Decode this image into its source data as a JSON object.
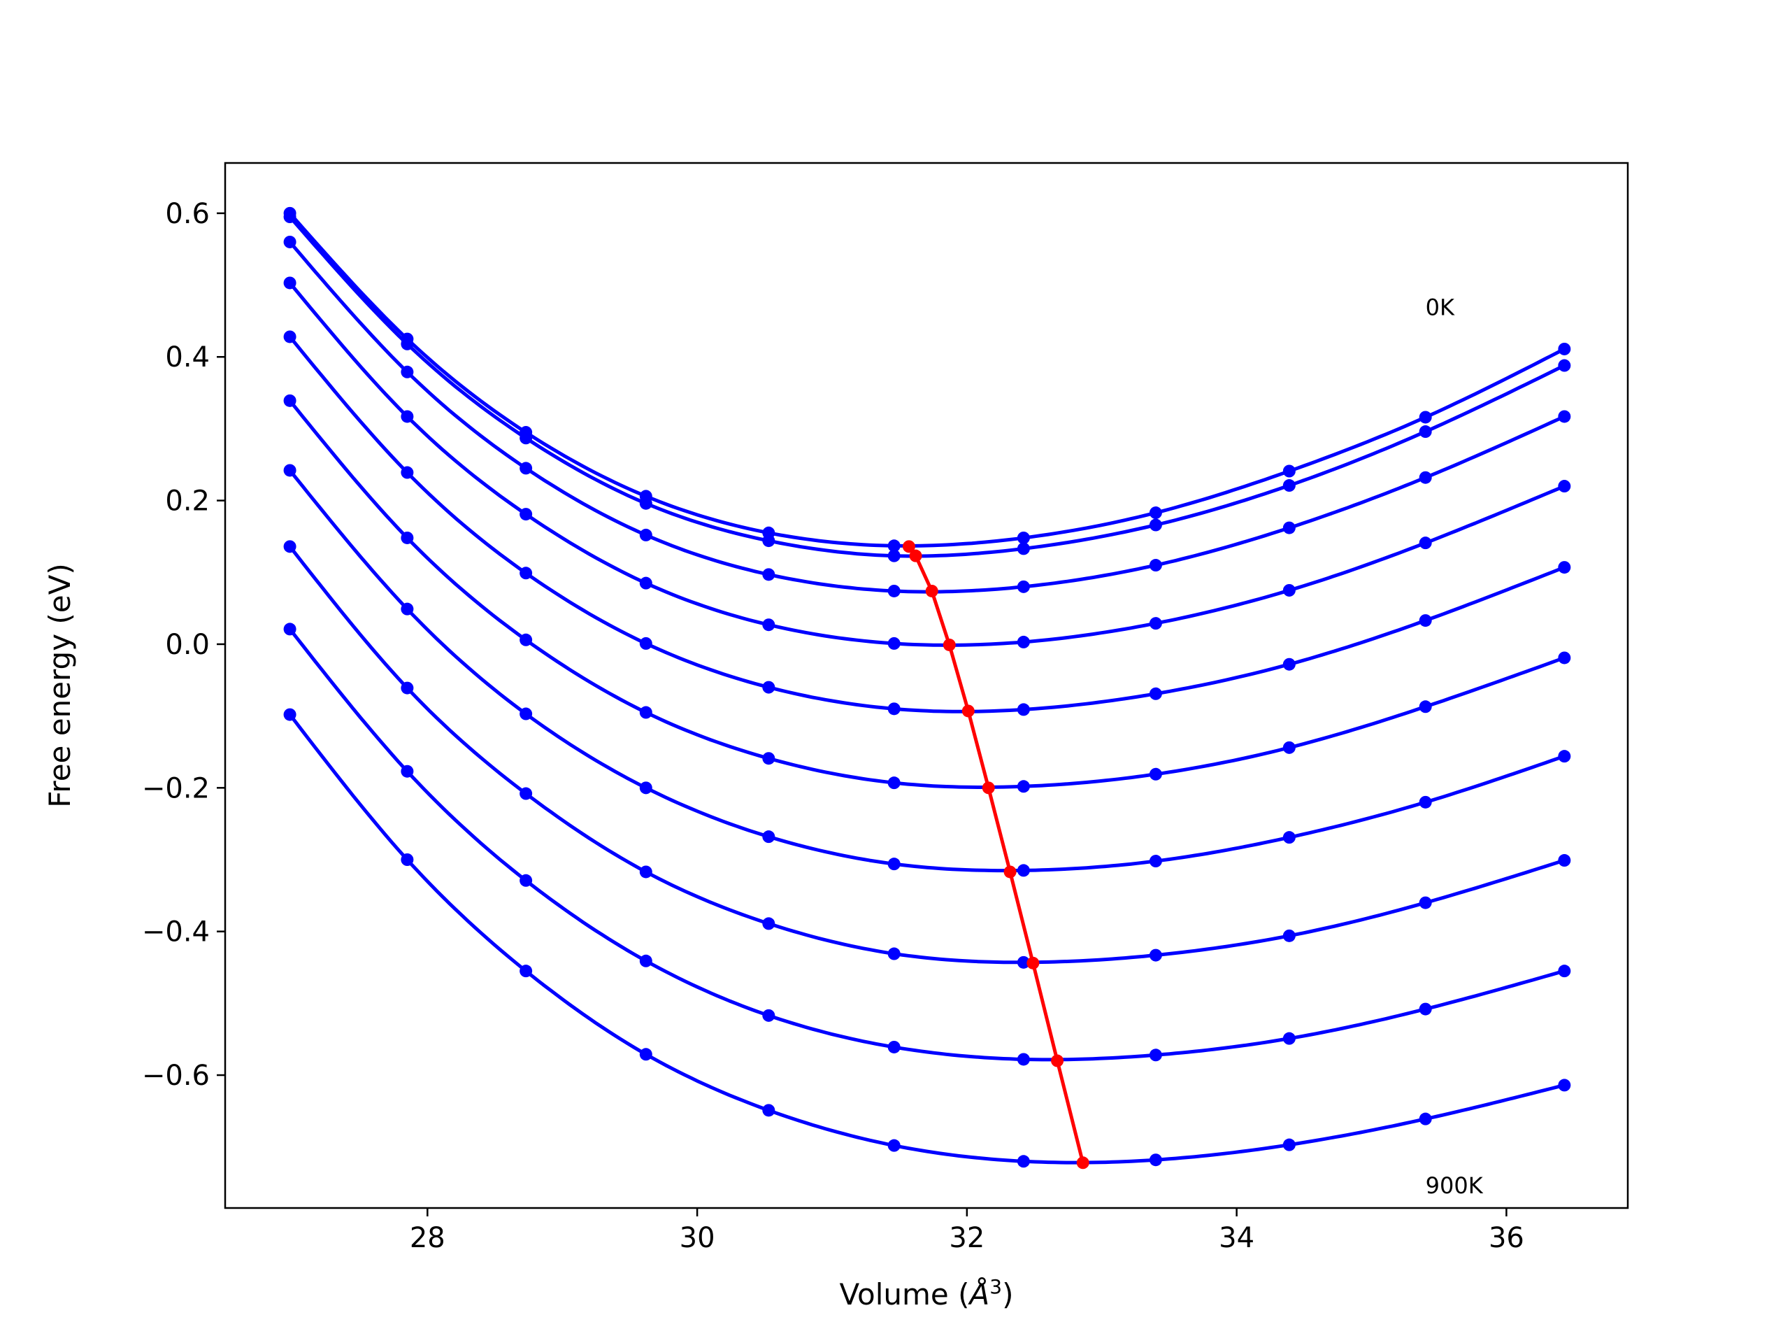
{
  "chart_data": {
    "type": "line",
    "title": "",
    "xlabel": "Volume (Å³)",
    "xlabel_base": "Volume (",
    "xlabel_symbol": "Å",
    "xlabel_exp": "3",
    "xlabel_close": ")",
    "ylabel": "Free energy (eV)",
    "xlim": [
      26.5,
      36.9
    ],
    "ylim": [
      -0.785,
      0.67
    ],
    "xticks": [
      28,
      30,
      32,
      34,
      36
    ],
    "xtick_labels": [
      "28",
      "30",
      "32",
      "34",
      "36"
    ],
    "yticks": [
      0.6,
      0.4,
      0.2,
      0.0,
      -0.2,
      -0.4,
      -0.6
    ],
    "ytick_labels": [
      "0.6",
      "0.4",
      "0.2",
      "0.0",
      "−0.2",
      "−0.4",
      "−0.6"
    ],
    "grid": false,
    "legend": "none",
    "x": [
      26.98,
      27.85,
      28.73,
      29.62,
      30.53,
      31.46,
      32.42,
      33.4,
      34.39,
      35.4,
      36.43
    ],
    "series": [
      {
        "values": [
          0.6,
          0.425,
          0.295,
          0.206,
          0.155,
          0.137,
          0.148,
          0.183,
          0.241,
          0.316,
          0.411
        ]
      },
      {
        "values": [
          0.595,
          0.418,
          0.287,
          0.196,
          0.144,
          0.123,
          0.133,
          0.166,
          0.221,
          0.296,
          0.388
        ]
      },
      {
        "values": [
          0.56,
          0.379,
          0.245,
          0.152,
          0.097,
          0.074,
          0.08,
          0.11,
          0.162,
          0.232,
          0.317
        ]
      },
      {
        "values": [
          0.503,
          0.317,
          0.181,
          0.085,
          0.027,
          0.001,
          0.003,
          0.029,
          0.075,
          0.141,
          0.22
        ]
      },
      {
        "values": [
          0.428,
          0.239,
          0.099,
          0.001,
          -0.06,
          -0.09,
          -0.091,
          -0.069,
          -0.028,
          0.033,
          0.107
        ]
      },
      {
        "values": [
          0.339,
          0.148,
          0.006,
          -0.095,
          -0.159,
          -0.193,
          -0.198,
          -0.181,
          -0.144,
          -0.087,
          -0.019
        ]
      },
      {
        "values": [
          0.242,
          0.049,
          -0.097,
          -0.2,
          -0.268,
          -0.306,
          -0.315,
          -0.302,
          -0.269,
          -0.22,
          -0.156
        ]
      },
      {
        "values": [
          0.136,
          -0.061,
          -0.208,
          -0.317,
          -0.389,
          -0.431,
          -0.443,
          -0.433,
          -0.406,
          -0.36,
          -0.301
        ]
      },
      {
        "values": [
          0.021,
          -0.177,
          -0.329,
          -0.441,
          -0.517,
          -0.561,
          -0.578,
          -0.572,
          -0.549,
          -0.508,
          -0.455
        ]
      },
      {
        "values": [
          -0.098,
          -0.3,
          -0.455,
          -0.571,
          -0.649,
          -0.698,
          -0.72,
          -0.718,
          -0.697,
          -0.661,
          -0.614
        ]
      }
    ],
    "minima": {
      "x": [
        31.57,
        31.62,
        31.74,
        31.87,
        32.01,
        32.16,
        32.32,
        32.49,
        32.67,
        32.86
      ],
      "y": [
        0.136,
        0.123,
        0.074,
        -0.001,
        -0.093,
        -0.2,
        -0.317,
        -0.444,
        -0.58,
        -0.722
      ]
    },
    "annotations": [
      {
        "text": "0K",
        "x": 35.4,
        "y": 0.47
      },
      {
        "text": "900K",
        "x": 35.4,
        "y": -0.753
      }
    ],
    "colors": {
      "curves": "#0000ff",
      "minima": "#ff0000",
      "axes": "#000000"
    }
  }
}
